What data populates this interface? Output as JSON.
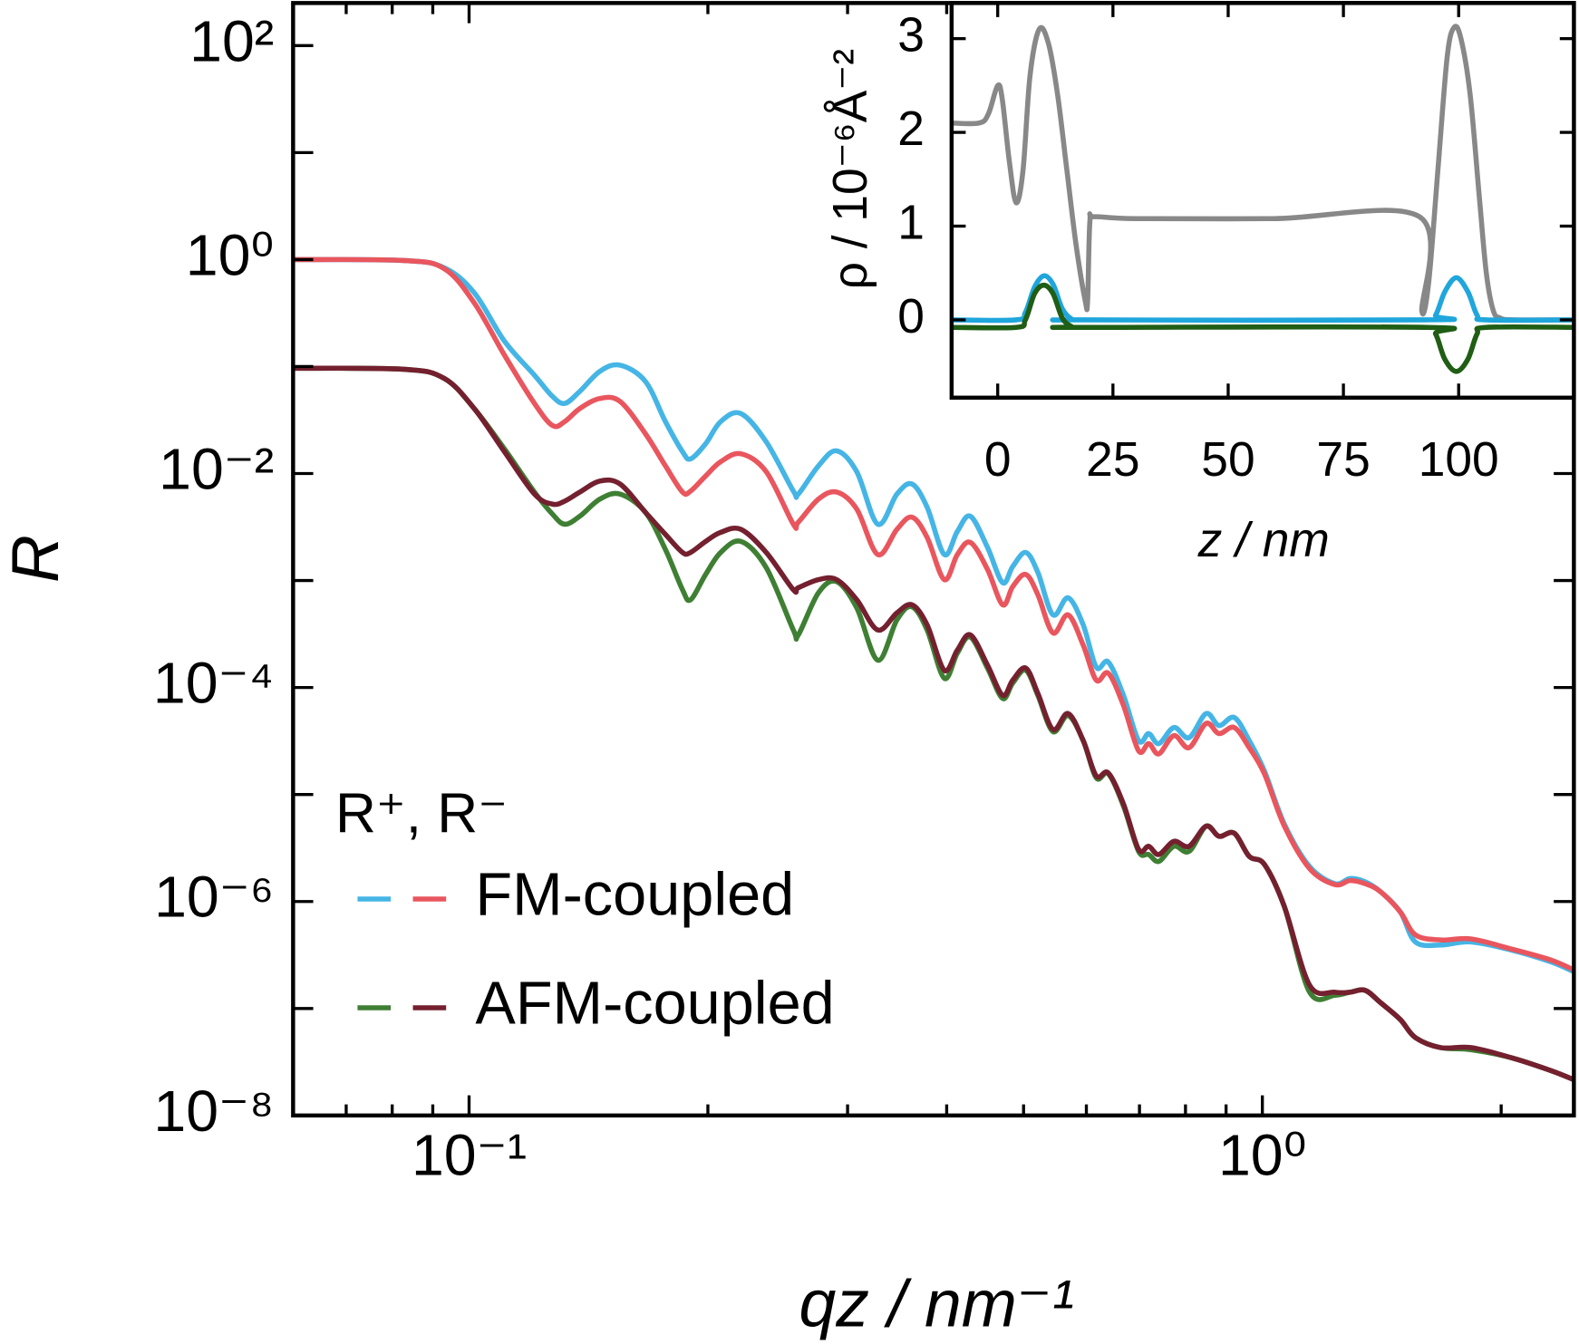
{
  "chart_data": [
    {
      "type": "line",
      "xscale": "log",
      "yscale": "log",
      "x_label": "qz / nm⁻¹",
      "y_label": "R",
      "xlim": [
        0.06,
        2.47
      ],
      "ylim": [
        1e-08,
        250
      ],
      "xticks": [
        {
          "value": 0.1,
          "label": "10⁻¹"
        },
        {
          "value": 1,
          "label": "10⁰"
        }
      ],
      "xticks_minor": [
        0.07,
        0.08,
        0.09,
        0.2,
        0.3,
        0.4,
        0.5,
        0.6,
        0.7,
        0.8,
        0.9,
        2
      ],
      "yticks": [
        {
          "value": 1e-08,
          "label": "10⁻⁸"
        },
        {
          "value": 1e-06,
          "label": "10⁻⁶"
        },
        {
          "value": 0.0001,
          "label": "10⁻⁴"
        },
        {
          "value": 0.01,
          "label": "10⁻²"
        },
        {
          "value": 1,
          "label": "10⁰"
        },
        {
          "value": 100,
          "label": "10²"
        }
      ],
      "yticks_minor": [
        1e-07,
        1e-05,
        0.001,
        0.1,
        10
      ],
      "legend_title": "R⁺, R⁻",
      "groups": [
        {
          "name": "FM-coupled",
          "series": [
            {
              "color": "#45b5e5",
              "x": [
                0.0601,
                0.0827,
                0.093,
                0.1015,
                0.1108,
                0.1209,
                0.1274,
                0.132,
                0.1379,
                0.1462,
                0.155,
                0.1668,
                0.1768,
                0.1858,
                0.1902,
                0.1987,
                0.2076,
                0.2201,
                0.2369,
                0.2563,
                0.26,
                0.2757,
                0.2906,
                0.3081,
                0.3275,
                0.3462,
                0.3617,
                0.3779,
                0.3972,
                0.4126,
                0.4285,
                0.4503,
                0.4705,
                0.4845,
                0.5032,
                0.5212,
                0.5445,
                0.569,
                0.5945,
                0.6175,
                0.6395,
                0.6682,
                0.6982,
                0.719,
                0.7404,
                0.7736,
                0.8083,
                0.8493,
                0.8818,
                0.9215,
                0.9627,
                1.006,
                1.066,
                1.147,
                1.234,
                1.29,
                1.347,
                1.408,
                1.492,
                1.559,
                1.677,
                1.831,
                2.059,
                2.313,
                2.474
              ],
              "values": [
                1.0,
                0.98,
                0.84,
                0.49,
                0.173,
                0.083,
                0.0526,
                0.0452,
                0.0586,
                0.0904,
                0.103,
                0.0727,
                0.0306,
                0.016,
                0.0137,
                0.019,
                0.0306,
                0.0364,
                0.0198,
                0.00686,
                0.00643,
                0.0118,
                0.0163,
                0.0104,
                0.00336,
                0.00643,
                0.00798,
                0.00485,
                0.00175,
                0.00288,
                0.00399,
                0.00204,
                0.000955,
                0.00135,
                0.00183,
                0.00119,
                0.000478,
                0.00069,
                0.000385,
                0.000155,
                0.000173,
                8.45e-05,
                3.19e-05,
                3.71e-05,
                2.99e-05,
                4.23e-05,
                3.4e-05,
                5.71e-05,
                4.41e-05,
                5.25e-05,
                3.19e-05,
                1.66e-05,
                5.28e-06,
                2.12e-06,
                1.47e-06,
                1.64e-06,
                1.53e-06,
                1.24e-06,
                8.01e-07,
                4.19e-07,
                3.92e-07,
                4.19e-07,
                3.52e-07,
                2.72e-07,
                2.19e-07
              ]
            },
            {
              "color": "#e9565e",
              "x": [
                0.0601,
                0.0827,
                0.093,
                0.1015,
                0.1108,
                0.1209,
                0.1274,
                0.132,
                0.1379,
                0.1462,
                0.155,
                0.1668,
                0.1768,
                0.1858,
                0.1902,
                0.1987,
                0.2076,
                0.2201,
                0.2369,
                0.2563,
                0.26,
                0.2757,
                0.2906,
                0.3081,
                0.3275,
                0.3462,
                0.3617,
                0.3779,
                0.3972,
                0.4126,
                0.4285,
                0.4503,
                0.4705,
                0.4845,
                0.5032,
                0.5212,
                0.5445,
                0.569,
                0.5945,
                0.6175,
                0.6395,
                0.6682,
                0.6982,
                0.719,
                0.7404,
                0.7736,
                0.8083,
                0.8493,
                0.8818,
                0.9215,
                0.9627,
                1.006,
                1.066,
                1.147,
                1.234,
                1.29,
                1.347,
                1.408,
                1.492,
                1.559,
                1.677,
                1.831,
                2.059,
                2.313,
                2.474
              ],
              "values": [
                1.0,
                0.98,
                0.823,
                0.394,
                0.128,
                0.0452,
                0.0281,
                0.0306,
                0.0405,
                0.0503,
                0.0472,
                0.0236,
                0.0118,
                0.00671,
                0.00686,
                0.00949,
                0.0129,
                0.0153,
                0.0104,
                0.00336,
                0.00351,
                0.00577,
                0.00671,
                0.00465,
                0.00175,
                0.00301,
                0.00391,
                0.00253,
                0.00102,
                0.00175,
                0.00227,
                0.00127,
                0.000593,
                0.000877,
                0.00114,
                0.000737,
                0.000324,
                0.000478,
                0.000249,
                0.000117,
                0.000136,
                6.8e-05,
                2.56e-05,
                2.99e-05,
                2.4e-05,
                3.55e-05,
                2.74e-05,
                4.61e-05,
                3.71e-05,
                4.23e-05,
                2.74e-05,
                1.56e-05,
                5.06e-06,
                2.03e-06,
                1.44e-06,
                1.57e-06,
                1.47e-06,
                1.24e-06,
                8.01e-07,
                4.88e-07,
                4.37e-07,
                4.47e-07,
                3.6e-07,
                2.83e-07,
                2.28e-07
              ]
            }
          ]
        },
        {
          "name": "AFM-coupled",
          "series": [
            {
              "color": "#3f7f34",
              "x": [
                0.0601,
                0.0827,
                0.093,
                0.1015,
                0.1108,
                0.1209,
                0.1274,
                0.132,
                0.1379,
                0.1462,
                0.155,
                0.1668,
                0.1768,
                0.1858,
                0.1902,
                0.1987,
                0.2076,
                0.2201,
                0.2369,
                0.2563,
                0.26,
                0.2757,
                0.2906,
                0.3081,
                0.3275,
                0.3462,
                0.3617,
                0.3779,
                0.3972,
                0.4126,
                0.4285,
                0.4503,
                0.4705,
                0.4845,
                0.5032,
                0.5212,
                0.5445,
                0.569,
                0.5945,
                0.6175,
                0.6395,
                0.6682,
                0.6982,
                0.719,
                0.7404,
                0.7736,
                0.8083,
                0.8493,
                0.8818,
                0.9215,
                0.9627,
                1.006,
                1.066,
                1.147,
                1.234,
                1.29,
                1.347,
                1.408,
                1.492,
                1.559,
                1.677,
                1.831,
                2.059,
                2.313,
                2.474
              ],
              "values": [
                0.0964,
                0.0944,
                0.0776,
                0.0405,
                0.017,
                0.00671,
                0.00417,
                0.00336,
                0.00399,
                0.00577,
                0.00643,
                0.00435,
                0.00195,
                0.00082,
                0.000661,
                0.00114,
                0.00183,
                0.00232,
                0.00132,
                0.000345,
                0.00031,
                0.000769,
                0.000977,
                0.000556,
                0.00018,
                0.000429,
                0.000568,
                0.000345,
                0.000122,
                0.00021,
                0.000296,
                0.000152,
                7.91e-05,
                0.00011,
                0.000145,
                8.45e-05,
                3.87e-05,
                5.47e-05,
                3.19e-05,
                1.43e-05,
                1.56e-05,
                7.8e-06,
                2.94e-06,
                2.75e-06,
                2.37e-06,
                3.28e-06,
                2.94e-06,
                5.06e-06,
                4.07e-06,
                4.35e-06,
                2.64e-06,
                2.22e-06,
                8.94e-07,
                1.42e-07,
                1.33e-07,
                1.42e-07,
                1.48e-07,
                1.14e-07,
                7.9e-08,
                5.35e-08,
                4.31e-08,
                4.12e-08,
                3.47e-08,
                2.62e-08,
                2.15e-08
              ]
            },
            {
              "color": "#74202f",
              "x": [
                0.0601,
                0.0827,
                0.093,
                0.1015,
                0.1108,
                0.1209,
                0.1274,
                0.132,
                0.1379,
                0.1462,
                0.155,
                0.1668,
                0.1768,
                0.1858,
                0.1902,
                0.1987,
                0.2076,
                0.2201,
                0.2369,
                0.2563,
                0.26,
                0.2757,
                0.2906,
                0.3081,
                0.3275,
                0.3462,
                0.3617,
                0.3779,
                0.3972,
                0.4126,
                0.4285,
                0.4503,
                0.4705,
                0.4845,
                0.5032,
                0.5212,
                0.5445,
                0.569,
                0.5945,
                0.6175,
                0.6395,
                0.6682,
                0.6982,
                0.719,
                0.7404,
                0.7736,
                0.8083,
                0.8493,
                0.8818,
                0.9215,
                0.9627,
                1.006,
                1.066,
                1.147,
                1.234,
                1.29,
                1.347,
                1.408,
                1.492,
                1.559,
                1.677,
                1.831,
                2.059,
                2.313,
                2.474
              ],
              "values": [
                0.0964,
                0.0944,
                0.0776,
                0.0405,
                0.016,
                0.00643,
                0.00518,
                0.00552,
                0.00671,
                0.00851,
                0.00798,
                0.00435,
                0.0027,
                0.00183,
                0.00183,
                0.00232,
                0.00282,
                0.00301,
                0.00183,
                0.00082,
                0.000857,
                0.00102,
                0.00102,
                0.000661,
                0.000345,
                0.000499,
                0.000593,
                0.000385,
                0.000145,
                0.000224,
                0.00031,
                0.000162,
                8.45e-05,
                0.000117,
                0.000152,
                8.81e-05,
                4.05e-05,
                5.71e-05,
                3.19e-05,
                1.49e-05,
                1.59e-05,
                8.15e-06,
                3.07e-06,
                3.28e-06,
                2.75e-06,
                3.65e-06,
                3.28e-06,
                5.06e-06,
                4.07e-06,
                4.35e-06,
                2.64e-06,
                2.22e-06,
                8.94e-07,
                1.65e-07,
                1.42e-07,
                1.42e-07,
                1.48e-07,
                1.14e-07,
                7.9e-08,
                5.35e-08,
                4.31e-08,
                4.31e-08,
                3.47e-08,
                2.62e-08,
                2.15e-08
              ]
            }
          ]
        }
      ]
    },
    {
      "type": "line",
      "x_label": "z / nm",
      "y_label": "ρ / 10⁻⁶Å⁻²",
      "xlim": [
        -10,
        125
      ],
      "ylim": [
        -0.83,
        3.38
      ],
      "xticks": [
        0,
        25,
        50,
        75,
        100
      ],
      "yticks": [
        0,
        1,
        2,
        3
      ],
      "series": [
        {
          "color": "#888888",
          "x": [
            -10,
            -4,
            -2,
            0,
            1,
            2.5,
            4,
            5.5,
            7,
            9,
            11,
            13,
            15,
            17,
            19,
            19.5,
            20,
            21,
            30,
            60,
            91.5,
            92,
            93.5,
            95.5,
            97.5,
            99,
            100.5,
            102.5,
            104.5,
            106,
            107.5,
            109,
            112,
            125
          ],
          "values": [
            2.1,
            2.1,
            2.2,
            2.5,
            2.35,
            1.7,
            1.25,
            1.6,
            2.6,
            3.1,
            2.95,
            2.4,
            1.6,
            0.8,
            0.2,
            0.2,
            1.05,
            1.1,
            1.08,
            1.08,
            1.1,
            0.1,
            0.4,
            1.6,
            2.8,
            3.12,
            3.0,
            2.4,
            1.3,
            0.5,
            0.1,
            0.02,
            0,
            0
          ]
        },
        {
          "color": "#1fa6dc",
          "x": [
            -10,
            4,
            6,
            8,
            10,
            12,
            14,
            16,
            18,
            93,
            95,
            97,
            99.5,
            102,
            104,
            106,
            125
          ],
          "values": [
            0,
            0,
            0.08,
            0.35,
            0.47,
            0.38,
            0.12,
            0.01,
            0,
            0,
            0.05,
            0.3,
            0.45,
            0.3,
            0.05,
            0,
            0
          ]
        },
        {
          "color": "#1f5e14",
          "x": [
            -10,
            4,
            6,
            8,
            10,
            12,
            14,
            16,
            18,
            93,
            95,
            97,
            99.5,
            102,
            104,
            106,
            125
          ],
          "values": [
            -0.08,
            -0.08,
            0,
            0.28,
            0.37,
            0.28,
            0.02,
            -0.07,
            -0.08,
            -0.08,
            -0.15,
            -0.42,
            -0.55,
            -0.42,
            -0.15,
            -0.08,
            -0.08
          ]
        }
      ]
    }
  ]
}
